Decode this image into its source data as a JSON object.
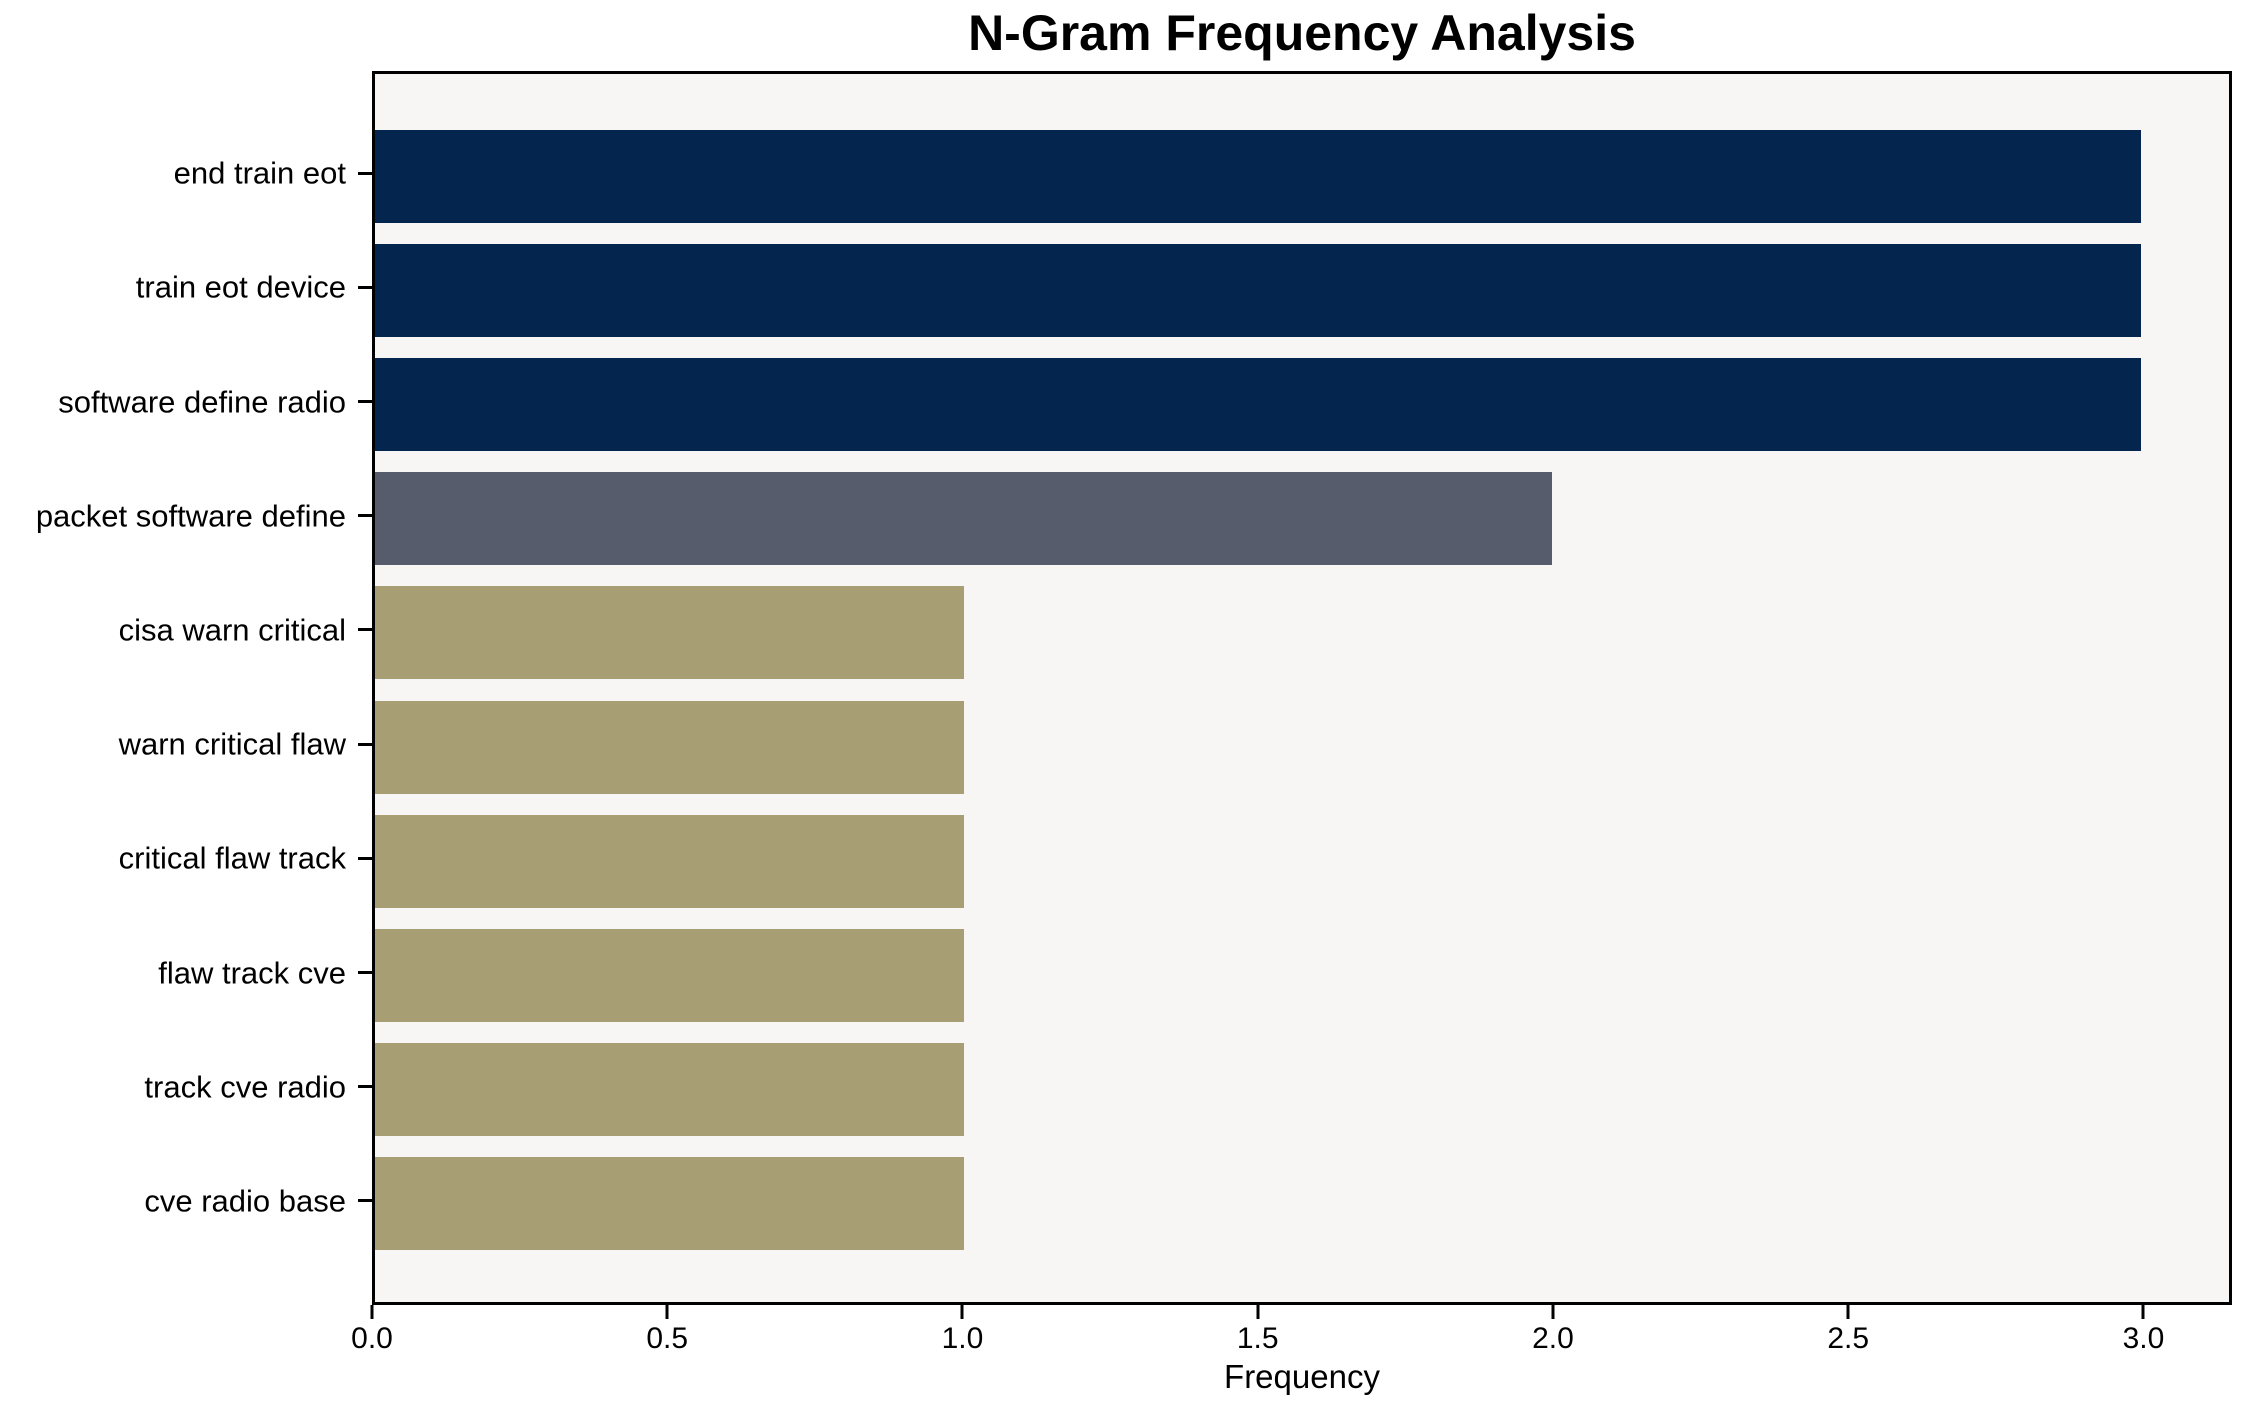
{
  "chart_data": {
    "type": "bar",
    "orientation": "horizontal",
    "title": "N-Gram Frequency Analysis",
    "xlabel": "Frequency",
    "ylabel": "",
    "categories": [
      "end train eot",
      "train eot device",
      "software define radio",
      "packet software define",
      "cisa warn critical",
      "warn critical flaw",
      "critical flaw track",
      "flaw track cve",
      "track cve radio",
      "cve radio base"
    ],
    "values": [
      3,
      3,
      3,
      2,
      1,
      1,
      1,
      1,
      1,
      1
    ],
    "bar_colors": [
      "#03254e",
      "#03254e",
      "#03254e",
      "#565c6b",
      "#a89e74",
      "#a89e74",
      "#a89e74",
      "#a89e74",
      "#a89e74",
      "#a89e74"
    ],
    "xlim": [
      0,
      3.15
    ],
    "xtick_values": [
      0,
      0.5,
      1,
      1.5,
      2,
      2.5,
      3
    ],
    "xtick_labels": [
      "0.0",
      "0.5",
      "1.0",
      "1.5",
      "2.0",
      "2.5",
      "3.0"
    ],
    "grid": false,
    "legend": "none",
    "colors": {
      "high_freq_bar": "#03254e",
      "mid_freq_bar": "#565c6b",
      "low_freq_bar": "#a89e74",
      "plot_background": "#f7f6f4",
      "figure_background": "#ffffff",
      "axis_line": "#000000",
      "text": "#000000"
    }
  }
}
